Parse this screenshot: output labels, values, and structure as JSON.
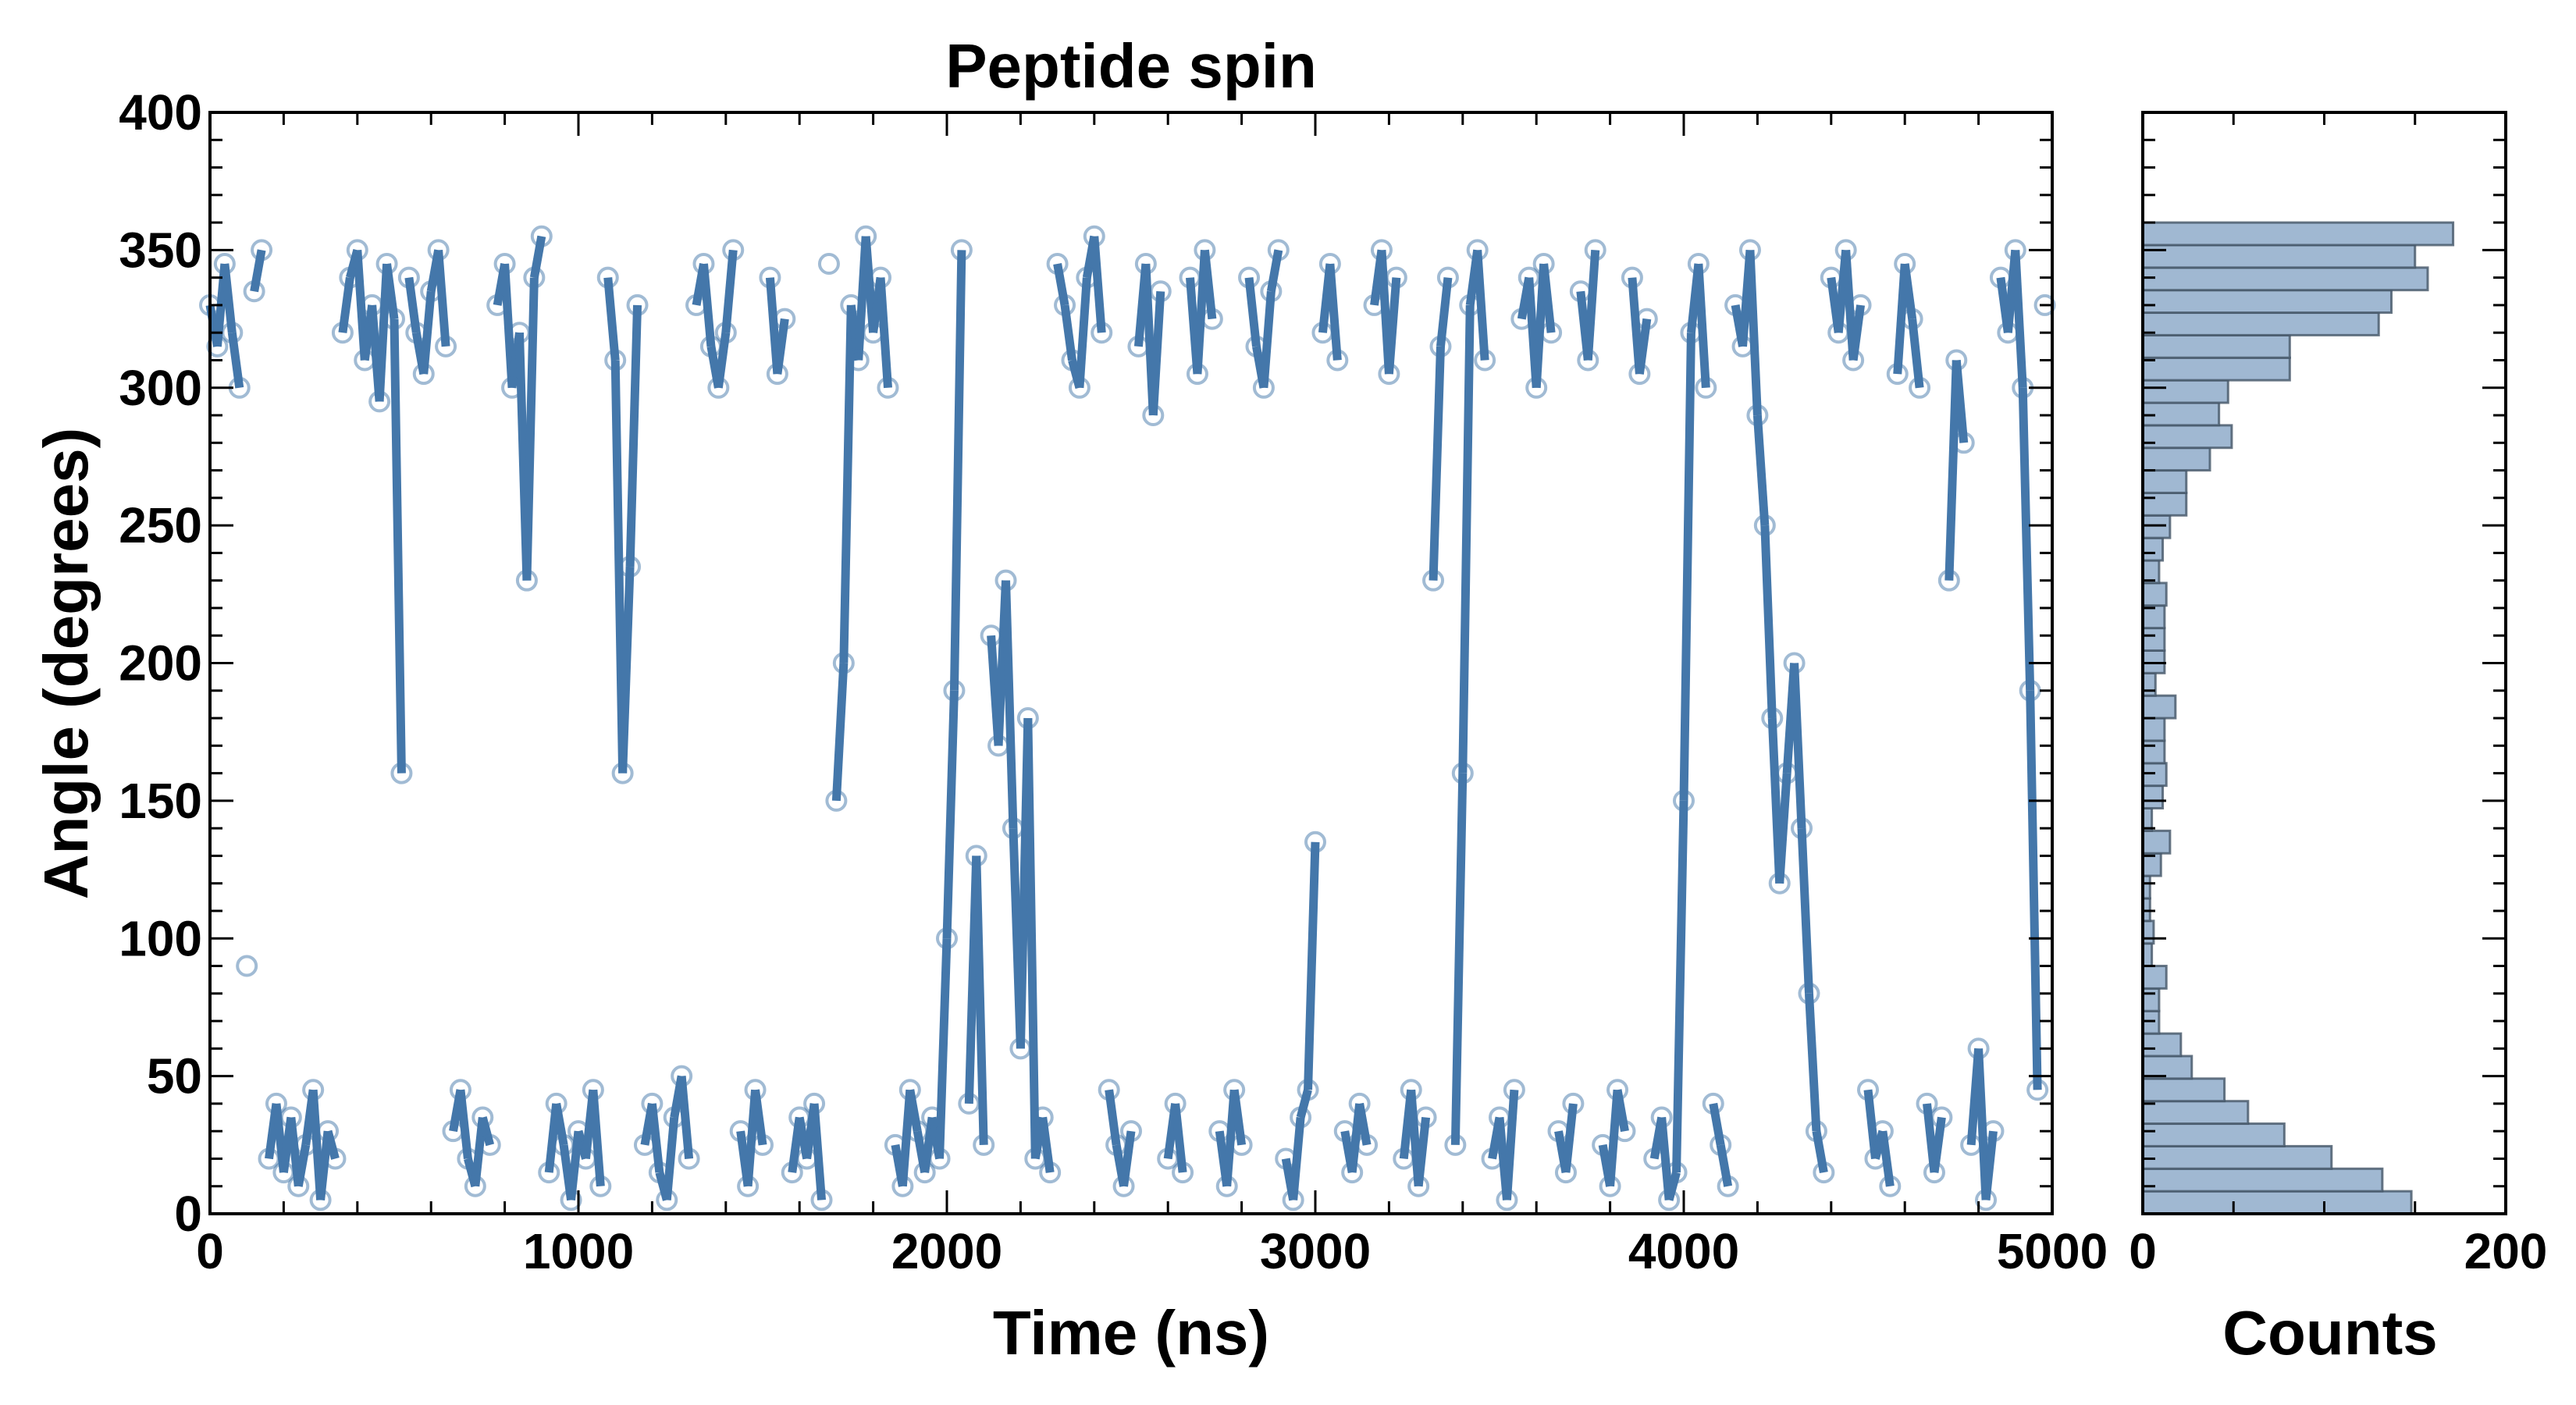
{
  "chart_data": [
    {
      "type": "scatter",
      "title": "Peptide spin",
      "xlabel": "Time (ns)",
      "ylabel": "Angle (degrees)",
      "xlim": [
        0,
        5000
      ],
      "ylim": [
        0,
        400
      ],
      "xticks": [
        0,
        1000,
        2000,
        3000,
        4000,
        5000
      ],
      "yticks": [
        0,
        50,
        100,
        150,
        200,
        250,
        300,
        350,
        400
      ],
      "grid": false,
      "series": [
        {
          "name": "angle",
          "color": "#4477aa",
          "x_step": 20,
          "values": [
            330,
            315,
            345,
            320,
            300,
            90,
            335,
            350,
            20,
            40,
            15,
            35,
            10,
            25,
            45,
            5,
            30,
            20,
            320,
            340,
            350,
            310,
            330,
            295,
            345,
            325,
            160,
            340,
            320,
            305,
            335,
            350,
            315,
            30,
            45,
            20,
            10,
            35,
            25,
            330,
            345,
            300,
            320,
            230,
            340,
            355,
            15,
            40,
            25,
            5,
            30,
            20,
            45,
            10,
            340,
            310,
            160,
            235,
            330,
            25,
            40,
            15,
            5,
            35,
            50,
            20,
            330,
            345,
            315,
            300,
            320,
            350,
            30,
            10,
            45,
            25,
            340,
            305,
            325,
            15,
            35,
            20,
            40,
            5,
            345,
            150,
            200,
            330,
            310,
            355,
            320,
            340,
            300,
            25,
            10,
            45,
            30,
            15,
            35,
            20,
            100,
            190,
            350,
            40,
            130,
            25,
            210,
            170,
            230,
            140,
            60,
            180,
            20,
            35,
            15,
            345,
            330,
            310,
            300,
            340,
            355,
            320,
            45,
            25,
            10,
            30,
            315,
            345,
            290,
            335,
            20,
            40,
            15,
            340,
            305,
            350,
            325,
            30,
            10,
            45,
            25,
            340,
            315,
            300,
            335,
            350,
            20,
            5,
            35,
            45,
            135,
            320,
            345,
            310,
            30,
            15,
            40,
            25,
            330,
            350,
            305,
            340,
            20,
            45,
            10,
            35,
            230,
            315,
            340,
            25,
            160,
            330,
            350,
            310,
            20,
            35,
            5,
            45,
            325,
            340,
            300,
            345,
            320,
            30,
            15,
            40,
            335,
            310,
            350,
            25,
            10,
            45,
            30,
            340,
            305,
            325,
            20,
            35,
            5,
            15,
            150,
            320,
            345,
            300,
            40,
            25,
            10,
            330,
            315,
            350,
            290,
            250,
            180,
            120,
            160,
            200,
            140,
            80,
            30,
            15,
            340,
            320,
            350,
            310,
            330,
            45,
            20,
            30,
            10,
            305,
            345,
            325,
            300,
            40,
            15,
            35,
            230,
            310,
            280,
            25,
            60,
            5,
            30,
            340,
            320,
            350,
            300,
            190,
            45,
            330
          ]
        }
      ]
    },
    {
      "type": "bar",
      "orientation": "horizontal",
      "title": "",
      "xlabel": "Counts",
      "ylabel": "",
      "xlim": [
        0,
        200
      ],
      "ylim": [
        0,
        400
      ],
      "xticks": [
        0,
        200
      ],
      "bin_range": [
        0,
        360
      ],
      "color": "#a0b8d2",
      "edge_color": "#445566",
      "counts": [
        148,
        132,
        104,
        78,
        58,
        45,
        27,
        21,
        9,
        9,
        13,
        5,
        6,
        4,
        4,
        10,
        15,
        5,
        11,
        13,
        12,
        12,
        18,
        7,
        12,
        12,
        12,
        13,
        9,
        11,
        15,
        24,
        24,
        37,
        49,
        42,
        47,
        81,
        81,
        130,
        137,
        157,
        150,
        171
      ]
    }
  ]
}
